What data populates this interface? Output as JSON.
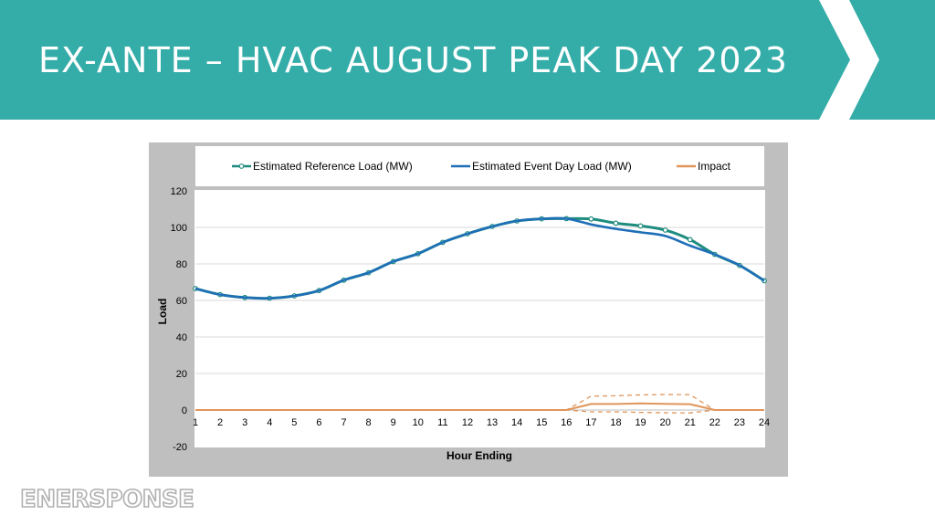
{
  "slide": {
    "title": "EX-ANTE – HVAC AUGUST PEAK DAY 2023",
    "logo_text": "ENERSPONSE",
    "accent_color": "#34ada9"
  },
  "chart_data": {
    "type": "line",
    "xlabel": "Hour Ending",
    "ylabel": "Load",
    "ylim": [
      -20,
      120
    ],
    "yticks": [
      -20,
      0,
      20,
      40,
      60,
      80,
      100,
      120
    ],
    "x": [
      1,
      2,
      3,
      4,
      5,
      6,
      7,
      8,
      9,
      10,
      11,
      12,
      13,
      14,
      15,
      16,
      17,
      18,
      19,
      20,
      21,
      22,
      23,
      24
    ],
    "grid": true,
    "legend_position": "top",
    "series": [
      {
        "name": "Estimated Reference Load (MW)",
        "color": "#1e8c7e",
        "marker": "circle",
        "values": [
          66.5,
          63.2,
          61.6,
          61.2,
          62.5,
          65.4,
          71.1,
          75.2,
          81.3,
          85.6,
          91.8,
          96.5,
          100.5,
          103.5,
          104.7,
          104.8,
          104.6,
          102.3,
          100.8,
          98.5,
          93.3,
          85.2,
          79.2,
          70.8
        ]
      },
      {
        "name": "Estimated Event Day Load (MW)",
        "color": "#1f6fb8",
        "marker": "none",
        "values": [
          66.5,
          63.2,
          61.6,
          61.2,
          62.5,
          65.4,
          71.1,
          75.2,
          81.3,
          85.6,
          91.8,
          96.5,
          100.5,
          103.5,
          104.7,
          104.8,
          101.6,
          99.2,
          97.3,
          95.3,
          90.0,
          85.2,
          79.2,
          70.8
        ]
      },
      {
        "name": "Impact",
        "color": "#e0955a",
        "marker": "none",
        "values": [
          0,
          0,
          0,
          0,
          0,
          0,
          0,
          0,
          0,
          0,
          0,
          0,
          0,
          0,
          0,
          0,
          3.3,
          3.3,
          3.6,
          3.4,
          3.2,
          0,
          0,
          0
        ],
        "band_upper": [
          0,
          0,
          0,
          0,
          0,
          0,
          0,
          0,
          0,
          0,
          0,
          0,
          0,
          0,
          0,
          0,
          7.6,
          7.8,
          8.3,
          8.5,
          8.4,
          0,
          0,
          0
        ],
        "band_lower": [
          0,
          0,
          0,
          0,
          0,
          0,
          0,
          0,
          0,
          0,
          0,
          0,
          0,
          0,
          0,
          0,
          -1.0,
          -1.0,
          -1.3,
          -1.5,
          -1.6,
          0,
          0,
          0
        ]
      }
    ]
  }
}
